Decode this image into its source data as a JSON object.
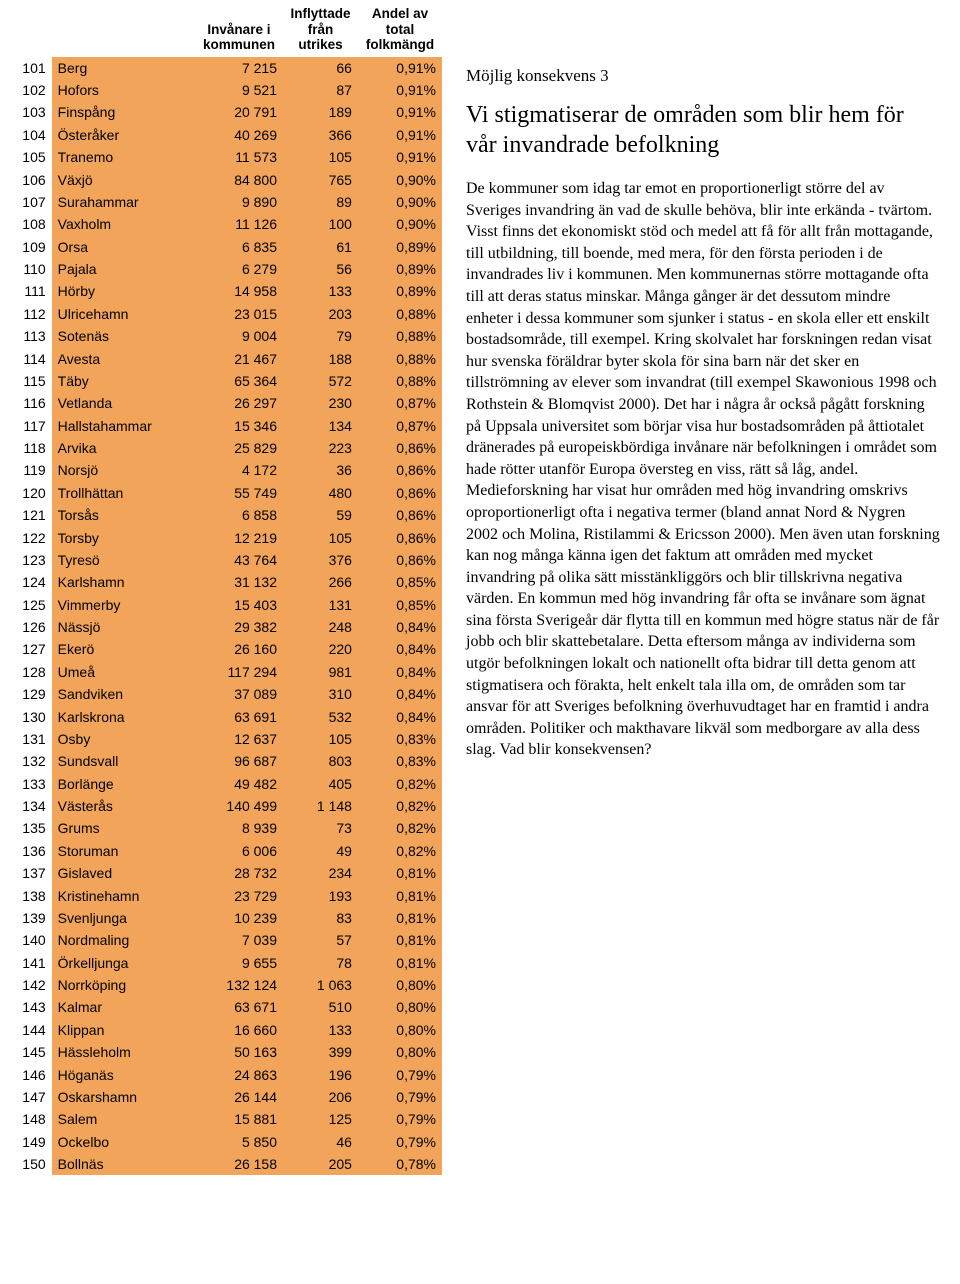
{
  "table": {
    "headers": {
      "rank": "",
      "name": "",
      "col1": "Invånare i\nkommunen",
      "col2": "Inflyttade\nfrån\nutrikes",
      "col3": "Andel av\ntotal\nfolkmängd"
    },
    "row_colors": {
      "white": "#ffffff",
      "orange": "#f2a45a"
    },
    "rows": [
      {
        "rank": "101",
        "name": "Berg",
        "c1": "7 215",
        "c2": "66",
        "c3": "0,91%"
      },
      {
        "rank": "102",
        "name": "Hofors",
        "c1": "9 521",
        "c2": "87",
        "c3": "0,91%"
      },
      {
        "rank": "103",
        "name": "Finspång",
        "c1": "20 791",
        "c2": "189",
        "c3": "0,91%"
      },
      {
        "rank": "104",
        "name": "Österåker",
        "c1": "40 269",
        "c2": "366",
        "c3": "0,91%"
      },
      {
        "rank": "105",
        "name": "Tranemo",
        "c1": "11 573",
        "c2": "105",
        "c3": "0,91%"
      },
      {
        "rank": "106",
        "name": "Växjö",
        "c1": "84 800",
        "c2": "765",
        "c3": "0,90%"
      },
      {
        "rank": "107",
        "name": "Surahammar",
        "c1": "9 890",
        "c2": "89",
        "c3": "0,90%"
      },
      {
        "rank": "108",
        "name": "Vaxholm",
        "c1": "11 126",
        "c2": "100",
        "c3": "0,90%"
      },
      {
        "rank": "109",
        "name": "Orsa",
        "c1": "6 835",
        "c2": "61",
        "c3": "0,89%"
      },
      {
        "rank": "110",
        "name": "Pajala",
        "c1": "6 279",
        "c2": "56",
        "c3": "0,89%"
      },
      {
        "rank": "111",
        "name": "Hörby",
        "c1": "14 958",
        "c2": "133",
        "c3": "0,89%"
      },
      {
        "rank": "112",
        "name": "Ulricehamn",
        "c1": "23 015",
        "c2": "203",
        "c3": "0,88%"
      },
      {
        "rank": "113",
        "name": "Sotenäs",
        "c1": "9 004",
        "c2": "79",
        "c3": "0,88%"
      },
      {
        "rank": "114",
        "name": "Avesta",
        "c1": "21 467",
        "c2": "188",
        "c3": "0,88%"
      },
      {
        "rank": "115",
        "name": "Täby",
        "c1": "65 364",
        "c2": "572",
        "c3": "0,88%"
      },
      {
        "rank": "116",
        "name": "Vetlanda",
        "c1": "26 297",
        "c2": "230",
        "c3": "0,87%"
      },
      {
        "rank": "117",
        "name": "Hallstahammar",
        "c1": "15 346",
        "c2": "134",
        "c3": "0,87%"
      },
      {
        "rank": "118",
        "name": "Arvika",
        "c1": "25 829",
        "c2": "223",
        "c3": "0,86%"
      },
      {
        "rank": "119",
        "name": "Norsjö",
        "c1": "4 172",
        "c2": "36",
        "c3": "0,86%"
      },
      {
        "rank": "120",
        "name": "Trollhättan",
        "c1": "55 749",
        "c2": "480",
        "c3": "0,86%"
      },
      {
        "rank": "121",
        "name": "Torsås",
        "c1": "6 858",
        "c2": "59",
        "c3": "0,86%"
      },
      {
        "rank": "122",
        "name": "Torsby",
        "c1": "12 219",
        "c2": "105",
        "c3": "0,86%"
      },
      {
        "rank": "123",
        "name": "Tyresö",
        "c1": "43 764",
        "c2": "376",
        "c3": "0,86%"
      },
      {
        "rank": "124",
        "name": "Karlshamn",
        "c1": "31 132",
        "c2": "266",
        "c3": "0,85%"
      },
      {
        "rank": "125",
        "name": "Vimmerby",
        "c1": "15 403",
        "c2": "131",
        "c3": "0,85%"
      },
      {
        "rank": "126",
        "name": "Nässjö",
        "c1": "29 382",
        "c2": "248",
        "c3": "0,84%"
      },
      {
        "rank": "127",
        "name": "Ekerö",
        "c1": "26 160",
        "c2": "220",
        "c3": "0,84%"
      },
      {
        "rank": "128",
        "name": "Umeå",
        "c1": "117 294",
        "c2": "981",
        "c3": "0,84%"
      },
      {
        "rank": "129",
        "name": "Sandviken",
        "c1": "37 089",
        "c2": "310",
        "c3": "0,84%"
      },
      {
        "rank": "130",
        "name": "Karlskrona",
        "c1": "63 691",
        "c2": "532",
        "c3": "0,84%"
      },
      {
        "rank": "131",
        "name": "Osby",
        "c1": "12 637",
        "c2": "105",
        "c3": "0,83%"
      },
      {
        "rank": "132",
        "name": "Sundsvall",
        "c1": "96 687",
        "c2": "803",
        "c3": "0,83%"
      },
      {
        "rank": "133",
        "name": "Borlänge",
        "c1": "49 482",
        "c2": "405",
        "c3": "0,82%"
      },
      {
        "rank": "134",
        "name": "Västerås",
        "c1": "140 499",
        "c2": "1 148",
        "c3": "0,82%"
      },
      {
        "rank": "135",
        "name": "Grums",
        "c1": "8 939",
        "c2": "73",
        "c3": "0,82%"
      },
      {
        "rank": "136",
        "name": "Storuman",
        "c1": "6 006",
        "c2": "49",
        "c3": "0,82%"
      },
      {
        "rank": "137",
        "name": "Gislaved",
        "c1": "28 732",
        "c2": "234",
        "c3": "0,81%"
      },
      {
        "rank": "138",
        "name": "Kristinehamn",
        "c1": "23 729",
        "c2": "193",
        "c3": "0,81%"
      },
      {
        "rank": "139",
        "name": "Svenljunga",
        "c1": "10 239",
        "c2": "83",
        "c3": "0,81%"
      },
      {
        "rank": "140",
        "name": "Nordmaling",
        "c1": "7 039",
        "c2": "57",
        "c3": "0,81%"
      },
      {
        "rank": "141",
        "name": "Örkelljunga",
        "c1": "9 655",
        "c2": "78",
        "c3": "0,81%"
      },
      {
        "rank": "142",
        "name": "Norrköping",
        "c1": "132 124",
        "c2": "1 063",
        "c3": "0,80%"
      },
      {
        "rank": "143",
        "name": "Kalmar",
        "c1": "63 671",
        "c2": "510",
        "c3": "0,80%"
      },
      {
        "rank": "144",
        "name": "Klippan",
        "c1": "16 660",
        "c2": "133",
        "c3": "0,80%"
      },
      {
        "rank": "145",
        "name": "Hässleholm",
        "c1": "50 163",
        "c2": "399",
        "c3": "0,80%"
      },
      {
        "rank": "146",
        "name": "Höganäs",
        "c1": "24 863",
        "c2": "196",
        "c3": "0,79%"
      },
      {
        "rank": "147",
        "name": "Oskarshamn",
        "c1": "26 144",
        "c2": "206",
        "c3": "0,79%"
      },
      {
        "rank": "148",
        "name": "Salem",
        "c1": "15 881",
        "c2": "125",
        "c3": "0,79%"
      },
      {
        "rank": "149",
        "name": "Ockelbo",
        "c1": "5 850",
        "c2": "46",
        "c3": "0,79%"
      },
      {
        "rank": "150",
        "name": "Bollnäs",
        "c1": "26 158",
        "c2": "205",
        "c3": "0,78%"
      }
    ]
  },
  "article": {
    "subheading": "Möjlig konsekvens 3",
    "heading": "Vi stigmatiserar de områden som blir hem för vår invandrade befolkning",
    "body": "De kommuner som idag tar emot en proportionerligt större del av Sveriges invandring än vad de skulle behöva, blir inte erkända - tvärtom. Visst finns det ekonomiskt stöd och medel att få för allt från mottagande, till utbildning, till boende, med mera, för den första perioden i de invandrades liv i kommunen. Men kommunernas större mottagande ofta till att deras status minskar. Många gånger är det dessutom mindre enheter i dessa kommuner som sjunker i status - en skola eller ett enskilt bostadsområde, till exempel. Kring skolvalet har forskningen redan visat hur svenska föräldrar byter skola för sina barn när det sker en tillströmning av elever som invandrat (till exempel Skawonious 1998 och Rothstein & Blomqvist 2000). Det har i några år också pågått forskning på Uppsala universitet som börjar visa hur bostadsområden på åttiotalet dränerades på europeiskbördiga invånare när befolkningen i området som hade rötter utanför Europa översteg en viss, rätt så låg, andel. Medieforskning har visat hur områden med hög invandring omskrivs oproportionerligt ofta i negativa termer (bland annat Nord & Nygren 2002 och Molina, Ristilammi & Ericsson 2000). Men även utan forskning kan nog många känna igen det faktum att områden med mycket invandring på olika sätt misstänkliggörs och blir tillskrivna negativa värden. En kommun med hög invandring får ofta se invånare som ägnat sina första Sverigeår där flytta till en kommun med högre status när de får jobb och blir skattebetalare. Detta eftersom många av individerna som utgör befolkningen lokalt och nationellt ofta bidrar till detta genom att stigmatisera och förakta, helt enkelt tala illa om, de områden som tar ansvar för att Sveriges befolkning överhuvudtaget har en framtid i andra områden. Politiker och makthavare likväl som medborgare av alla dess slag. Vad blir konsekvensen?"
  }
}
